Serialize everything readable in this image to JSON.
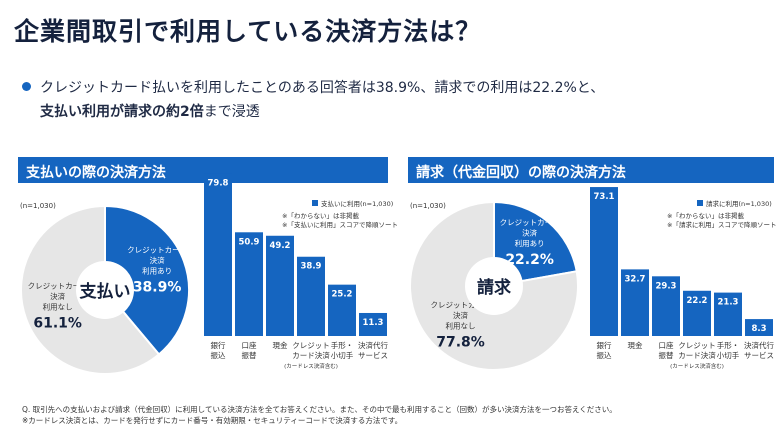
{
  "title": "企業間取引で利用している決済方法は？",
  "lead": {
    "line1": "クレジットカード払いを利用したことのある回答者は38.9%、請求での利用は22.2%と、",
    "line2_bold": "支払い利用が請求の約2倍",
    "line2_rest": "まで浸透"
  },
  "colors": {
    "accent": "#1565c0",
    "gray": "#e6e6e6",
    "dark": "#14213d"
  },
  "chart_data": [
    {
      "type": "pie",
      "banner": "支払いの際の決済方法",
      "n_label": "(n=1,030)",
      "center_label": "支払い",
      "slices": [
        {
          "label_lines": [
            "クレジットカード",
            "決済",
            "利用あり"
          ],
          "value": 38.9,
          "value_label": "38.9%",
          "color": "#1565c0"
        },
        {
          "label_lines": [
            "クレジットカード",
            "決済",
            "利用なし"
          ],
          "value": 61.1,
          "value_label": "61.1%",
          "color": "#e6e6e6"
        }
      ]
    },
    {
      "type": "bar",
      "legend": "支払いに利用(n=1,030)",
      "notes": [
        "※「わからない」は非掲載",
        "※「支払いに利用」スコアで降順ソート"
      ],
      "categories": [
        [
          "銀行",
          "振込"
        ],
        [
          "口座",
          "振替"
        ],
        [
          "現金"
        ],
        [
          "クレジット",
          "カード決済",
          "(カードレス決済含む)"
        ],
        [
          "手形・",
          "小切手"
        ],
        [
          "決済代行",
          "サービス"
        ]
      ],
      "values": [
        79.8,
        50.9,
        49.2,
        38.9,
        25.2,
        11.3
      ],
      "value_labels": [
        "79.8",
        "50.9",
        "49.2",
        "38.9",
        "25.2",
        "11.3"
      ],
      "ylim": [
        0,
        80
      ]
    },
    {
      "type": "pie",
      "banner": "請求（代金回収）の際の決済方法",
      "n_label": "(n=1,030)",
      "center_label": "請求",
      "slices": [
        {
          "label_lines": [
            "クレジットカード",
            "決済",
            "利用あり"
          ],
          "value": 22.2,
          "value_label": "22.2%",
          "color": "#1565c0"
        },
        {
          "label_lines": [
            "クレジットカード",
            "決済",
            "利用なし"
          ],
          "value": 77.8,
          "value_label": "77.8%",
          "color": "#e6e6e6"
        }
      ]
    },
    {
      "type": "bar",
      "legend": "請求に利用(n=1,030)",
      "notes": [
        "※「わからない」は非掲載",
        "※「請求に利用」スコアで降順ソート"
      ],
      "categories": [
        [
          "銀行",
          "振込"
        ],
        [
          "現金"
        ],
        [
          "口座",
          "振替"
        ],
        [
          "クレジット",
          "カード決済",
          "(カードレス決済含む)"
        ],
        [
          "手形・",
          "小切手"
        ],
        [
          "決済代行",
          "サービス"
        ]
      ],
      "values": [
        73.1,
        32.7,
        29.3,
        22.2,
        21.3,
        8.3
      ],
      "value_labels": [
        "73.1",
        "32.7",
        "29.3",
        "22.2",
        "21.3",
        "8.3"
      ],
      "ylim": [
        0,
        80
      ]
    }
  ],
  "footnotes": [
    "Q. 取引先への支払いおよび請求（代金回収）に利用している決済方法を全てお答えください。また、その中で最も利用すること（回数）が多い決済方法を一つお答えください。",
    "※カードレス決済とは、カードを発行せずにカード番号・有効期限・セキュリティーコードで決済する方法です。"
  ]
}
